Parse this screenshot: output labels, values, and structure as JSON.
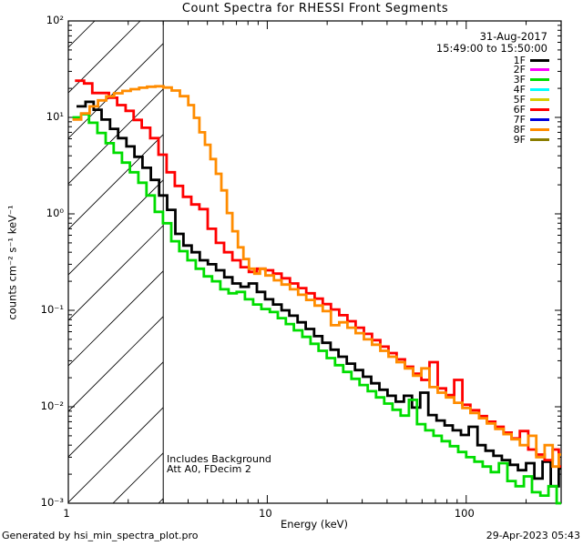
{
  "title": "Count Spectra for RHESSI Front Segments",
  "annotations": {
    "date": "31-Aug-2017",
    "time_range": "15:49:00 to 15:50:00",
    "note_line1": "Includes Background",
    "note_line2": "Att A0, FDecim 2",
    "footer_left": "Generated by hsi_min_spectra_plot.pro",
    "footer_right": "29-Apr-2023 05:43"
  },
  "chart_data": {
    "type": "line",
    "subtype": "histogram-step spectra",
    "title": "Count Spectra for RHESSI Front Segments",
    "xlabel": "Energy (keV)",
    "ylabel": "counts cm⁻² s⁻¹ keV⁻¹",
    "xscale": "log",
    "yscale": "log",
    "xlim": [
      1,
      300
    ],
    "ylim": [
      0.001,
      100
    ],
    "grid": false,
    "legend_position": "top-right-inside",
    "x_ticks": {
      "values": [
        1,
        10,
        100
      ],
      "labels": [
        "1",
        "10",
        "100"
      ]
    },
    "y_ticks": {
      "values": [
        100,
        10,
        1,
        0.1,
        0.01,
        0.001
      ],
      "labels": [
        "10²",
        "10¹",
        "10⁰",
        "10⁻¹",
        "10⁻²",
        "10⁻³"
      ]
    },
    "hatch_region": {
      "xmin": 1,
      "xmax": 3,
      "style": "diagonal-hatch"
    },
    "series": [
      {
        "name": "1F",
        "color": "#000000",
        "visible": true,
        "points": [
          [
            1.1,
            13.0
          ],
          [
            1.22,
            14.5
          ],
          [
            1.34,
            12.0
          ],
          [
            1.47,
            9.5
          ],
          [
            1.62,
            7.6
          ],
          [
            1.78,
            6.1
          ],
          [
            1.96,
            5.0
          ],
          [
            2.15,
            3.9
          ],
          [
            2.36,
            3.0
          ],
          [
            2.6,
            2.25
          ],
          [
            2.86,
            1.55
          ],
          [
            3.14,
            1.1
          ],
          [
            3.45,
            0.62
          ],
          [
            3.79,
            0.47
          ],
          [
            4.17,
            0.4
          ],
          [
            4.58,
            0.33
          ],
          [
            5.03,
            0.3
          ],
          [
            5.53,
            0.26
          ],
          [
            6.08,
            0.22
          ],
          [
            6.68,
            0.19
          ],
          [
            7.34,
            0.175
          ],
          [
            8.07,
            0.19
          ],
          [
            8.87,
            0.155
          ],
          [
            9.75,
            0.13
          ],
          [
            10.7,
            0.115
          ],
          [
            11.8,
            0.1
          ],
          [
            12.9,
            0.088
          ],
          [
            14.2,
            0.075
          ],
          [
            15.6,
            0.064
          ],
          [
            17.2,
            0.054
          ],
          [
            18.9,
            0.046
          ],
          [
            20.8,
            0.039
          ],
          [
            22.8,
            0.033
          ],
          [
            25.1,
            0.028
          ],
          [
            27.6,
            0.024
          ],
          [
            30.3,
            0.0205
          ],
          [
            33.3,
            0.0175
          ],
          [
            36.6,
            0.015
          ],
          [
            40.2,
            0.013
          ],
          [
            44.2,
            0.0113
          ],
          [
            48.6,
            0.013
          ],
          [
            53.4,
            0.0098
          ],
          [
            58.7,
            0.014
          ],
          [
            64.5,
            0.0082
          ],
          [
            70.9,
            0.0072
          ],
          [
            77.9,
            0.0064
          ],
          [
            85.6,
            0.0057
          ],
          [
            94.1,
            0.0051
          ],
          [
            103,
            0.0062
          ],
          [
            114,
            0.004
          ],
          [
            125,
            0.0035
          ],
          [
            137,
            0.0031
          ],
          [
            151,
            0.0028
          ],
          [
            166,
            0.0025
          ],
          [
            182,
            0.0022
          ],
          [
            200,
            0.0026
          ],
          [
            220,
            0.0018
          ],
          [
            242,
            0.0027
          ],
          [
            266,
            0.0015
          ],
          [
            292,
            0.0023
          ]
        ]
      },
      {
        "name": "2F",
        "color": "#ff00ff",
        "visible": false,
        "points": []
      },
      {
        "name": "3F",
        "color": "#00dd00",
        "visible": true,
        "points": [
          [
            1.05,
            10.0
          ],
          [
            1.16,
            10.8
          ],
          [
            1.27,
            8.8
          ],
          [
            1.4,
            6.9
          ],
          [
            1.54,
            5.4
          ],
          [
            1.69,
            4.3
          ],
          [
            1.86,
            3.4
          ],
          [
            2.04,
            2.7
          ],
          [
            2.25,
            2.1
          ],
          [
            2.47,
            1.55
          ],
          [
            2.72,
            1.05
          ],
          [
            2.99,
            0.8
          ],
          [
            3.29,
            0.52
          ],
          [
            3.61,
            0.41
          ],
          [
            3.97,
            0.33
          ],
          [
            4.37,
            0.27
          ],
          [
            4.8,
            0.225
          ],
          [
            5.28,
            0.2
          ],
          [
            5.81,
            0.165
          ],
          [
            6.39,
            0.15
          ],
          [
            7.02,
            0.155
          ],
          [
            7.72,
            0.13
          ],
          [
            8.49,
            0.115
          ],
          [
            9.34,
            0.103
          ],
          [
            10.3,
            0.096
          ],
          [
            11.3,
            0.083
          ],
          [
            12.4,
            0.072
          ],
          [
            13.6,
            0.062
          ],
          [
            15.0,
            0.053
          ],
          [
            16.5,
            0.045
          ],
          [
            18.1,
            0.038
          ],
          [
            19.9,
            0.032
          ],
          [
            21.9,
            0.027
          ],
          [
            24.1,
            0.023
          ],
          [
            26.5,
            0.0195
          ],
          [
            29.1,
            0.0168
          ],
          [
            32.0,
            0.0145
          ],
          [
            35.2,
            0.0125
          ],
          [
            38.7,
            0.0108
          ],
          [
            42.6,
            0.0093
          ],
          [
            46.8,
            0.0081
          ],
          [
            51.5,
            0.0118
          ],
          [
            56.6,
            0.0066
          ],
          [
            62.3,
            0.0057
          ],
          [
            68.5,
            0.005
          ],
          [
            75.3,
            0.0044
          ],
          [
            82.8,
            0.0039
          ],
          [
            91.1,
            0.0034
          ],
          [
            100,
            0.003
          ],
          [
            110,
            0.0027
          ],
          [
            121,
            0.0024
          ],
          [
            133,
            0.0021
          ],
          [
            146,
            0.0026
          ],
          [
            161,
            0.0017
          ],
          [
            177,
            0.0015
          ],
          [
            195,
            0.0019
          ],
          [
            214,
            0.0013
          ],
          [
            236,
            0.0012
          ],
          [
            259,
            0.0015
          ],
          [
            285,
            0.001
          ]
        ]
      },
      {
        "name": "4F",
        "color": "#00ffff",
        "visible": false,
        "points": []
      },
      {
        "name": "5F",
        "color": "#d6ce00",
        "visible": false,
        "points": []
      },
      {
        "name": "6F",
        "color": "#ff0000",
        "visible": true,
        "points": [
          [
            1.08,
            24.0
          ],
          [
            1.2,
            22.5
          ],
          [
            1.32,
            17.9
          ],
          [
            1.45,
            17.9
          ],
          [
            1.6,
            16.0
          ],
          [
            1.76,
            13.4
          ],
          [
            1.94,
            11.7
          ],
          [
            2.13,
            9.4
          ],
          [
            2.34,
            7.8
          ],
          [
            2.58,
            6.1
          ],
          [
            2.84,
            4.1
          ],
          [
            3.12,
            2.7
          ],
          [
            3.43,
            1.95
          ],
          [
            3.77,
            1.5
          ],
          [
            4.15,
            1.25
          ],
          [
            4.56,
            1.12
          ],
          [
            5.02,
            0.7
          ],
          [
            5.52,
            0.5
          ],
          [
            6.07,
            0.4
          ],
          [
            6.68,
            0.33
          ],
          [
            7.34,
            0.28
          ],
          [
            8.08,
            0.25
          ],
          [
            8.88,
            0.27
          ],
          [
            9.77,
            0.26
          ],
          [
            10.7,
            0.24
          ],
          [
            11.8,
            0.215
          ],
          [
            13.0,
            0.19
          ],
          [
            14.3,
            0.17
          ],
          [
            15.7,
            0.15
          ],
          [
            17.3,
            0.132
          ],
          [
            19.0,
            0.116
          ],
          [
            20.9,
            0.102
          ],
          [
            23.0,
            0.089
          ],
          [
            25.3,
            0.077
          ],
          [
            27.8,
            0.066
          ],
          [
            30.6,
            0.057
          ],
          [
            33.6,
            0.049
          ],
          [
            37.0,
            0.042
          ],
          [
            40.7,
            0.036
          ],
          [
            44.7,
            0.031
          ],
          [
            49.2,
            0.026
          ],
          [
            54.1,
            0.022
          ],
          [
            59.5,
            0.019
          ],
          [
            65.4,
            0.029
          ],
          [
            71.9,
            0.0155
          ],
          [
            79.1,
            0.0132
          ],
          [
            87.0,
            0.019
          ],
          [
            95.7,
            0.0105
          ],
          [
            105,
            0.0092
          ],
          [
            116,
            0.008
          ],
          [
            127,
            0.007
          ],
          [
            140,
            0.0062
          ],
          [
            154,
            0.0054
          ],
          [
            169,
            0.0047
          ],
          [
            186,
            0.0056
          ],
          [
            205,
            0.0036
          ],
          [
            225,
            0.0032
          ],
          [
            248,
            0.0028
          ],
          [
            272,
            0.0036
          ],
          [
            292,
            0.0024
          ]
        ]
      },
      {
        "name": "7F",
        "color": "#0000dd",
        "visible": false,
        "points": []
      },
      {
        "name": "8F",
        "color": "#ff8c00",
        "visible": true,
        "points": [
          [
            1.05,
            9.5
          ],
          [
            1.16,
            11.0
          ],
          [
            1.28,
            13.0
          ],
          [
            1.41,
            15.0
          ],
          [
            1.55,
            16.5
          ],
          [
            1.7,
            17.8
          ],
          [
            1.87,
            18.8
          ],
          [
            2.06,
            19.6
          ],
          [
            2.27,
            20.3
          ],
          [
            2.49,
            20.8
          ],
          [
            2.74,
            21.0
          ],
          [
            3.01,
            20.4
          ],
          [
            3.31,
            19.0
          ],
          [
            3.64,
            16.6
          ],
          [
            4.01,
            13.4
          ],
          [
            4.28,
            9.9
          ],
          [
            4.56,
            7.0
          ],
          [
            4.86,
            5.2
          ],
          [
            5.18,
            3.7
          ],
          [
            5.52,
            2.6
          ],
          [
            5.88,
            1.75
          ],
          [
            6.27,
            1.02
          ],
          [
            6.68,
            0.66
          ],
          [
            7.12,
            0.45
          ],
          [
            7.59,
            0.34
          ],
          [
            8.09,
            0.27
          ],
          [
            8.62,
            0.24
          ],
          [
            9.19,
            0.27
          ],
          [
            9.79,
            0.23
          ],
          [
            10.8,
            0.205
          ],
          [
            11.8,
            0.185
          ],
          [
            13.0,
            0.165
          ],
          [
            14.3,
            0.145
          ],
          [
            15.7,
            0.128
          ],
          [
            17.3,
            0.112
          ],
          [
            19.0,
            0.098
          ],
          [
            20.9,
            0.07
          ],
          [
            23.0,
            0.075
          ],
          [
            25.3,
            0.066
          ],
          [
            27.8,
            0.058
          ],
          [
            30.6,
            0.05
          ],
          [
            33.6,
            0.044
          ],
          [
            37.0,
            0.038
          ],
          [
            40.7,
            0.033
          ],
          [
            44.7,
            0.029
          ],
          [
            49.2,
            0.025
          ],
          [
            54.1,
            0.021
          ],
          [
            59.5,
            0.025
          ],
          [
            65.4,
            0.016
          ],
          [
            71.9,
            0.014
          ],
          [
            79.1,
            0.0125
          ],
          [
            87.0,
            0.011
          ],
          [
            95.7,
            0.0097
          ],
          [
            105,
            0.0086
          ],
          [
            116,
            0.0076
          ],
          [
            127,
            0.0067
          ],
          [
            140,
            0.0059
          ],
          [
            154,
            0.0052
          ],
          [
            169,
            0.0046
          ],
          [
            186,
            0.004
          ],
          [
            205,
            0.005
          ],
          [
            225,
            0.003
          ],
          [
            248,
            0.004
          ],
          [
            272,
            0.0024
          ],
          [
            292,
            0.0032
          ]
        ]
      },
      {
        "name": "9F",
        "color": "#8a7d00",
        "visible": false,
        "points": []
      }
    ]
  }
}
